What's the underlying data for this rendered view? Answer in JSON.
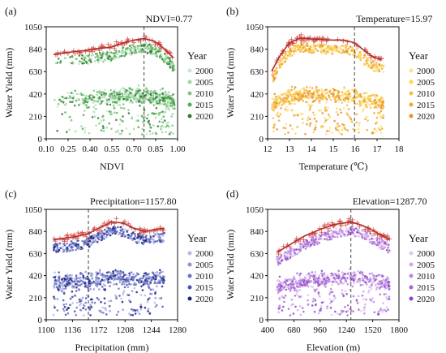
{
  "chart_data": [
    {
      "type": "scatter",
      "panel_label": "(a)",
      "xlabel": "NDVI",
      "ylabel": "Water Yield (mm)",
      "xlim": [
        0.1,
        1.0
      ],
      "ylim": [
        0,
        1050
      ],
      "x_ticks": [
        "0.10",
        "0.25",
        "0.40",
        "0.55",
        "0.70",
        "0.85",
        "1.00"
      ],
      "y_ticks": [
        "0",
        "210",
        "420",
        "630",
        "840",
        "1050"
      ],
      "threshold": 0.77,
      "annotation": "NDVI=0.77",
      "legend_title": "Year",
      "legend": [
        "2000",
        "2005",
        "2010",
        "2015",
        "2020"
      ],
      "colors": [
        "#c8e6c9",
        "#a5d6a7",
        "#81c784",
        "#4caf50",
        "#2e7d32"
      ],
      "fit_curve": [
        [
          0.15,
          790
        ],
        [
          0.25,
          810
        ],
        [
          0.35,
          825
        ],
        [
          0.45,
          845
        ],
        [
          0.55,
          860
        ],
        [
          0.62,
          895
        ],
        [
          0.7,
          925
        ],
        [
          0.77,
          940
        ],
        [
          0.83,
          920
        ],
        [
          0.88,
          880
        ],
        [
          0.93,
          815
        ],
        [
          0.97,
          760
        ]
      ],
      "cloud_x_range": [
        0.15,
        0.98
      ],
      "cloud_y_range": [
        20,
        1000
      ]
    },
    {
      "type": "scatter",
      "panel_label": "(b)",
      "xlabel": "Temperature (℃)",
      "ylabel": "Water Yield (mm)",
      "xlim": [
        12,
        18
      ],
      "ylim": [
        0,
        1050
      ],
      "x_ticks": [
        "12",
        "13",
        "14",
        "15",
        "16",
        "17",
        "18"
      ],
      "y_ticks": [
        "0",
        "210",
        "420",
        "630",
        "840",
        "1050"
      ],
      "threshold": 15.97,
      "annotation": "Temperature=15.97",
      "legend_title": "Year",
      "legend": [
        "2000",
        "2005",
        "2010",
        "2015",
        "2020"
      ],
      "colors": [
        "#ffe082",
        "#ffd54f",
        "#f5c04a",
        "#f0a830",
        "#e8902a"
      ],
      "fit_curve": [
        [
          12.2,
          640
        ],
        [
          12.6,
          790
        ],
        [
          13.0,
          900
        ],
        [
          13.5,
          945
        ],
        [
          14.0,
          935
        ],
        [
          14.5,
          930
        ],
        [
          15.0,
          925
        ],
        [
          15.5,
          925
        ],
        [
          15.97,
          900
        ],
        [
          16.4,
          830
        ],
        [
          16.8,
          770
        ],
        [
          17.2,
          740
        ]
      ],
      "cloud_x_range": [
        12.2,
        17.3
      ],
      "cloud_y_range": [
        0,
        1000
      ]
    },
    {
      "type": "scatter",
      "panel_label": "(c)",
      "xlabel": "Precipitation (mm)",
      "ylabel": "Water Yield (mm)",
      "xlim": [
        1100,
        1280
      ],
      "ylim": [
        0,
        1050
      ],
      "x_ticks": [
        "1100",
        "1136",
        "1172",
        "1208",
        "1244",
        "1280"
      ],
      "y_ticks": [
        "0",
        "210",
        "420",
        "630",
        "840",
        "1050"
      ],
      "threshold": 1157.8,
      "annotation": "Precipitation=1157.80",
      "legend_title": "Year",
      "legend": [
        "2000",
        "2005",
        "2010",
        "2015",
        "2020"
      ],
      "colors": [
        "#b3b9e6",
        "#8b93d6",
        "#6a73c4",
        "#4650b0",
        "#1a237e"
      ],
      "fit_curve": [
        [
          1110,
          760
        ],
        [
          1125,
          775
        ],
        [
          1140,
          790
        ],
        [
          1157.8,
          820
        ],
        [
          1172,
          870
        ],
        [
          1190,
          930
        ],
        [
          1205,
          920
        ],
        [
          1220,
          870
        ],
        [
          1235,
          840
        ],
        [
          1250,
          860
        ],
        [
          1262,
          870
        ]
      ],
      "cloud_x_range": [
        1110,
        1262
      ],
      "cloud_y_range": [
        0,
        1000
      ]
    },
    {
      "type": "scatter",
      "panel_label": "(d)",
      "xlabel": "Elevation (m)",
      "ylabel": "Water Yield (mm)",
      "xlim": [
        400,
        1800
      ],
      "ylim": [
        0,
        1050
      ],
      "x_ticks": [
        "400",
        "680",
        "960",
        "1240",
        "1520",
        "1800"
      ],
      "y_ticks": [
        "0",
        "210",
        "420",
        "630",
        "840",
        "1050"
      ],
      "threshold": 1287.7,
      "annotation": "Elevation=1287.70",
      "legend_title": "Year",
      "legend": [
        "2000",
        "2005",
        "2010",
        "2015",
        "2020"
      ],
      "colors": [
        "#e1c8f0",
        "#d0a8ea",
        "#bb86e0",
        "#a768d6",
        "#8e44c4"
      ],
      "fit_curve": [
        [
          500,
          640
        ],
        [
          650,
          720
        ],
        [
          800,
          800
        ],
        [
          950,
          855
        ],
        [
          1100,
          905
        ],
        [
          1287.7,
          930
        ],
        [
          1400,
          900
        ],
        [
          1500,
          860
        ],
        [
          1600,
          810
        ],
        [
          1700,
          760
        ]
      ],
      "cloud_x_range": [
        500,
        1700
      ],
      "cloud_y_range": [
        0,
        1000
      ]
    }
  ]
}
